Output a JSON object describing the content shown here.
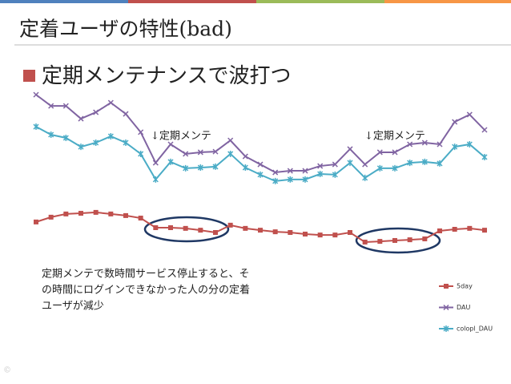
{
  "chart_data": {
    "type": "line",
    "title": "定着ユーザの特性(bad)",
    "subtitle": "定期メンテナンスで波打つ",
    "annotations": [
      "↓定期メンテ",
      "↓定期メンテ"
    ],
    "note": [
      "定期メンテで数時間サービス停止すると、そ",
      "の時間にログインできなかった人の分の定着",
      "ユーザが減少"
    ],
    "ylim": [
      0,
      100
    ],
    "series": [
      {
        "name": "5day",
        "color": "#c0504d",
        "values": [
          43.2,
          45.3,
          46.7,
          47.0,
          47.4,
          46.7,
          46.0,
          44.9,
          40.7,
          40.7,
          40.4,
          39.6,
          38.6,
          41.8,
          40.4,
          39.6,
          38.9,
          38.6,
          37.9,
          37.5,
          37.5,
          38.6,
          34.4,
          34.7,
          35.1,
          35.4,
          35.8,
          39.3,
          40.0,
          40.4,
          39.6
        ]
      },
      {
        "name": "DAU",
        "color": "#8064a2",
        "values": [
          98.9,
          94.0,
          94.0,
          88.4,
          91.2,
          95.4,
          90.5,
          82.5,
          69.1,
          77.2,
          73.0,
          73.7,
          74.0,
          78.9,
          71.9,
          68.4,
          64.9,
          65.6,
          65.6,
          67.7,
          68.4,
          75.1,
          68.4,
          73.7,
          73.7,
          77.2,
          77.9,
          77.2,
          87.0,
          90.2,
          83.5
        ]
      },
      {
        "name": "colopl_DAU",
        "color": "#4bacc6",
        "values": [
          84.9,
          81.4,
          80.0,
          76.1,
          77.9,
          80.7,
          77.9,
          73.0,
          61.8,
          69.5,
          66.7,
          67.0,
          67.4,
          73.0,
          67.0,
          63.9,
          61.1,
          61.8,
          61.8,
          64.2,
          63.9,
          69.1,
          62.5,
          66.7,
          66.7,
          69.1,
          69.5,
          68.8,
          76.1,
          77.2,
          71.6
        ]
      }
    ]
  }
}
